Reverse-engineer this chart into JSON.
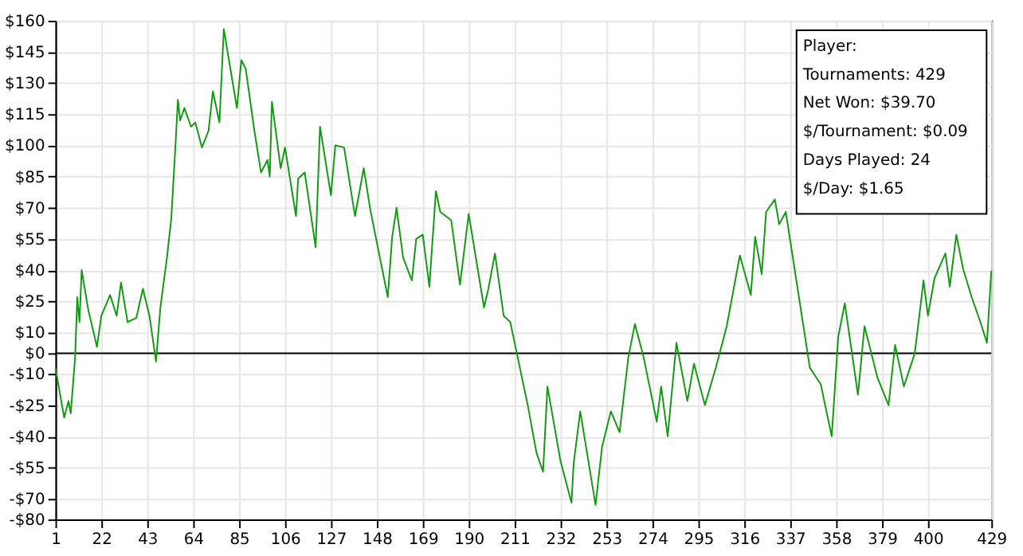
{
  "chart_data": {
    "type": "line",
    "annotations": [
      "Player:",
      "Tournaments: 429",
      "Net Won: $39.70",
      "$/Tournament: $0.09",
      "Days Played: 24",
      "$/Day: $1.65"
    ],
    "x": [
      1,
      5,
      7,
      8,
      10,
      11,
      12,
      13,
      16,
      20,
      22,
      26,
      29,
      31,
      34,
      38,
      41,
      44,
      47,
      49,
      52,
      54,
      56,
      57,
      58,
      60,
      63,
      65,
      68,
      71,
      73,
      76,
      78,
      81,
      84,
      86,
      88,
      92,
      95,
      98,
      99,
      100,
      104,
      106,
      111,
      112,
      115,
      120,
      122,
      127,
      129,
      133,
      138,
      142,
      145,
      153,
      155,
      157,
      160,
      164,
      166,
      169,
      172,
      175,
      177,
      182,
      186,
      190,
      197,
      199,
      202,
      206,
      209,
      212,
      217,
      221,
      224,
      226,
      232,
      237,
      238,
      241,
      248,
      251,
      255,
      259,
      263,
      266,
      270,
      276,
      278,
      281,
      285,
      290,
      293,
      298,
      303,
      308,
      314,
      319,
      321,
      324,
      326,
      330,
      332,
      335,
      346,
      351,
      356,
      359,
      362,
      368,
      371,
      377,
      382,
      385,
      389,
      394,
      398,
      400,
      403,
      408,
      410,
      413,
      416,
      420,
      424,
      427,
      429
    ],
    "series": [
      {
        "color": "#139a13",
        "values": [
          -7,
          -31,
          -23,
          -29,
          -2,
          27,
          15,
          40,
          21,
          3,
          18,
          28,
          18,
          34,
          15,
          17,
          31,
          18,
          -4,
          22,
          46,
          65,
          102,
          122,
          112,
          118,
          109,
          111,
          99,
          107,
          126,
          111,
          156,
          137,
          118,
          141,
          137,
          107,
          87,
          93,
          85,
          121,
          89,
          99,
          66,
          84,
          87,
          51,
          109,
          76,
          100,
          99,
          66,
          89,
          69,
          27,
          56,
          70,
          46,
          35,
          55,
          57,
          32,
          78,
          68,
          64,
          33,
          67,
          22,
          31,
          48,
          18,
          15,
          0,
          -25,
          -48,
          -57,
          -16,
          -52,
          -72,
          -53,
          -28,
          -73,
          -45,
          -28,
          -38,
          -2,
          14,
          -2,
          -33,
          -16,
          -40,
          5,
          -23,
          -5,
          -25,
          -7,
          13,
          47,
          28,
          56,
          38,
          68,
          74,
          62,
          68,
          -7,
          -15,
          -40,
          8,
          24,
          -20,
          13,
          -12,
          -25,
          4,
          -16,
          0,
          35,
          18,
          36,
          48,
          32,
          57,
          41,
          27,
          15,
          5,
          39.7
        ]
      }
    ],
    "xlim": [
      1,
      429
    ],
    "xticks": [
      1,
      22,
      43,
      64,
      85,
      106,
      127,
      148,
      169,
      190,
      211,
      232,
      253,
      274,
      295,
      316,
      337,
      358,
      379,
      400,
      429
    ],
    "ylim": [
      -80,
      160
    ],
    "yticks": [
      {
        "value": 160,
        "label": "$160"
      },
      {
        "value": 145,
        "label": "$145"
      },
      {
        "value": 130,
        "label": "$130"
      },
      {
        "value": 115,
        "label": "$115"
      },
      {
        "value": 100,
        "label": "$100"
      },
      {
        "value": 85,
        "label": "$85"
      },
      {
        "value": 70,
        "label": "$70"
      },
      {
        "value": 55,
        "label": "$55"
      },
      {
        "value": 40,
        "label": "$40"
      },
      {
        "value": 25,
        "label": "$25"
      },
      {
        "value": 10,
        "label": "$10"
      },
      {
        "value": 0,
        "label": "$0"
      },
      {
        "value": -10,
        "label": "-$10"
      },
      {
        "value": -25,
        "label": "-$25"
      },
      {
        "value": -40,
        "label": "-$40"
      },
      {
        "value": -55,
        "label": "-$55"
      },
      {
        "value": -70,
        "label": "-$70"
      },
      {
        "value": -80,
        "label": "-$80"
      }
    ],
    "ref_lines": [
      {
        "axis": "y",
        "value": 0,
        "color": "#000000"
      }
    ],
    "grid": true,
    "marker": "none",
    "line_style": "solid"
  }
}
